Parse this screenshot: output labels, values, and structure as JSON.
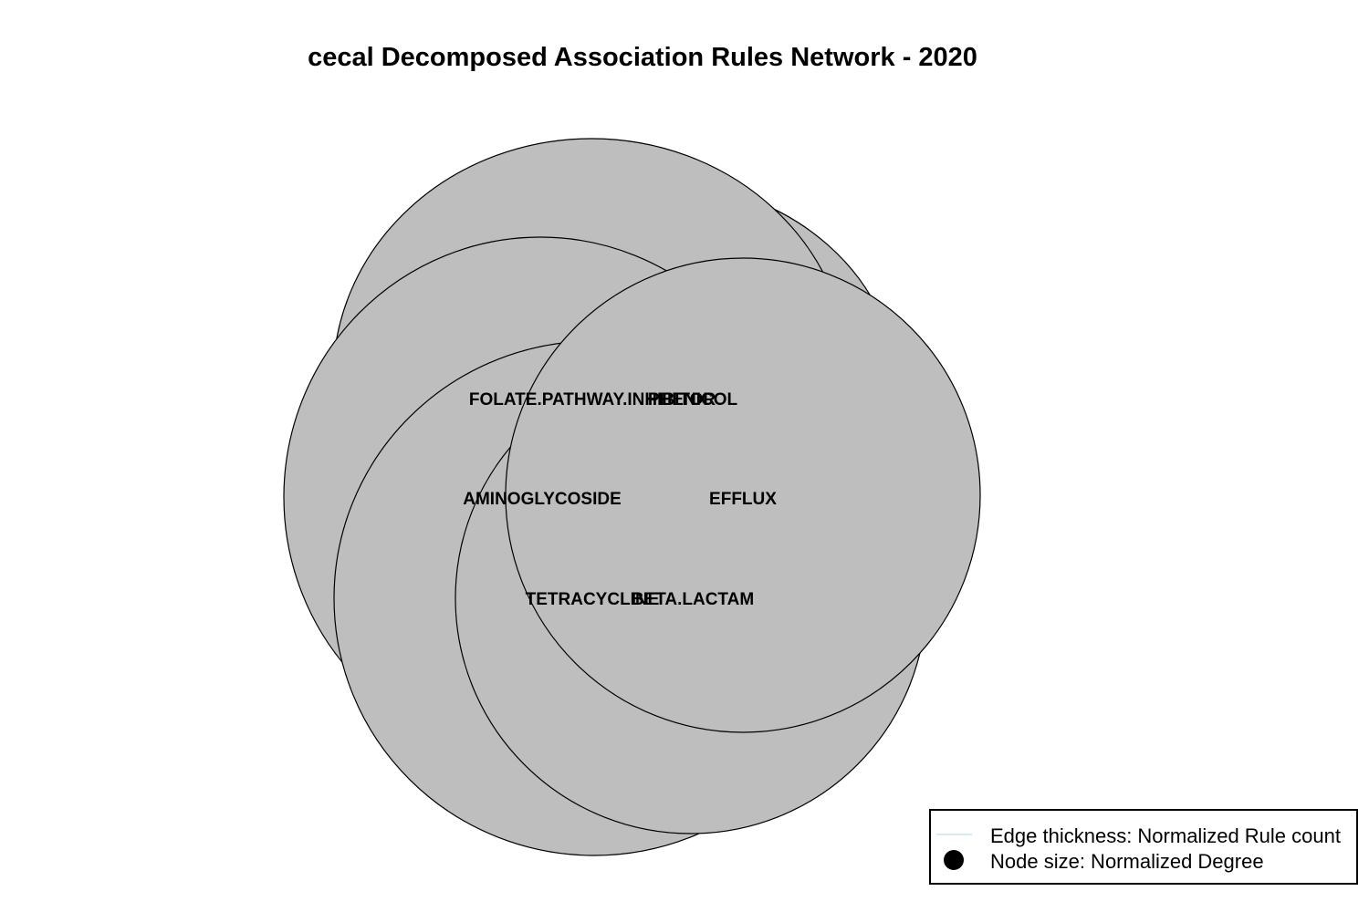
{
  "title": "cecal Decomposed Association Rules Network - 2020",
  "node_fill": "#bebebe",
  "node_stroke": "#000000",
  "edge_color": "#add8e6",
  "nodes": [
    {
      "id": "folate",
      "label": "FOLATE.PATHWAY.INHIBITOR"
    },
    {
      "id": "phenicol",
      "label": "PHENICOL"
    },
    {
      "id": "aminoglycoside",
      "label": "AMINOGLYCOSIDE"
    },
    {
      "id": "efflux",
      "label": "EFFLUX"
    },
    {
      "id": "tetracycline",
      "label": "TETRACYCLINE"
    },
    {
      "id": "beta_lactam",
      "label": "BETA.LACTAM"
    }
  ],
  "legend": {
    "items": [
      {
        "symbol": "line",
        "label": "Edge thickness: Normalized Rule count"
      },
      {
        "symbol": "circle",
        "label": "Node size: Normalized Degree"
      }
    ]
  }
}
